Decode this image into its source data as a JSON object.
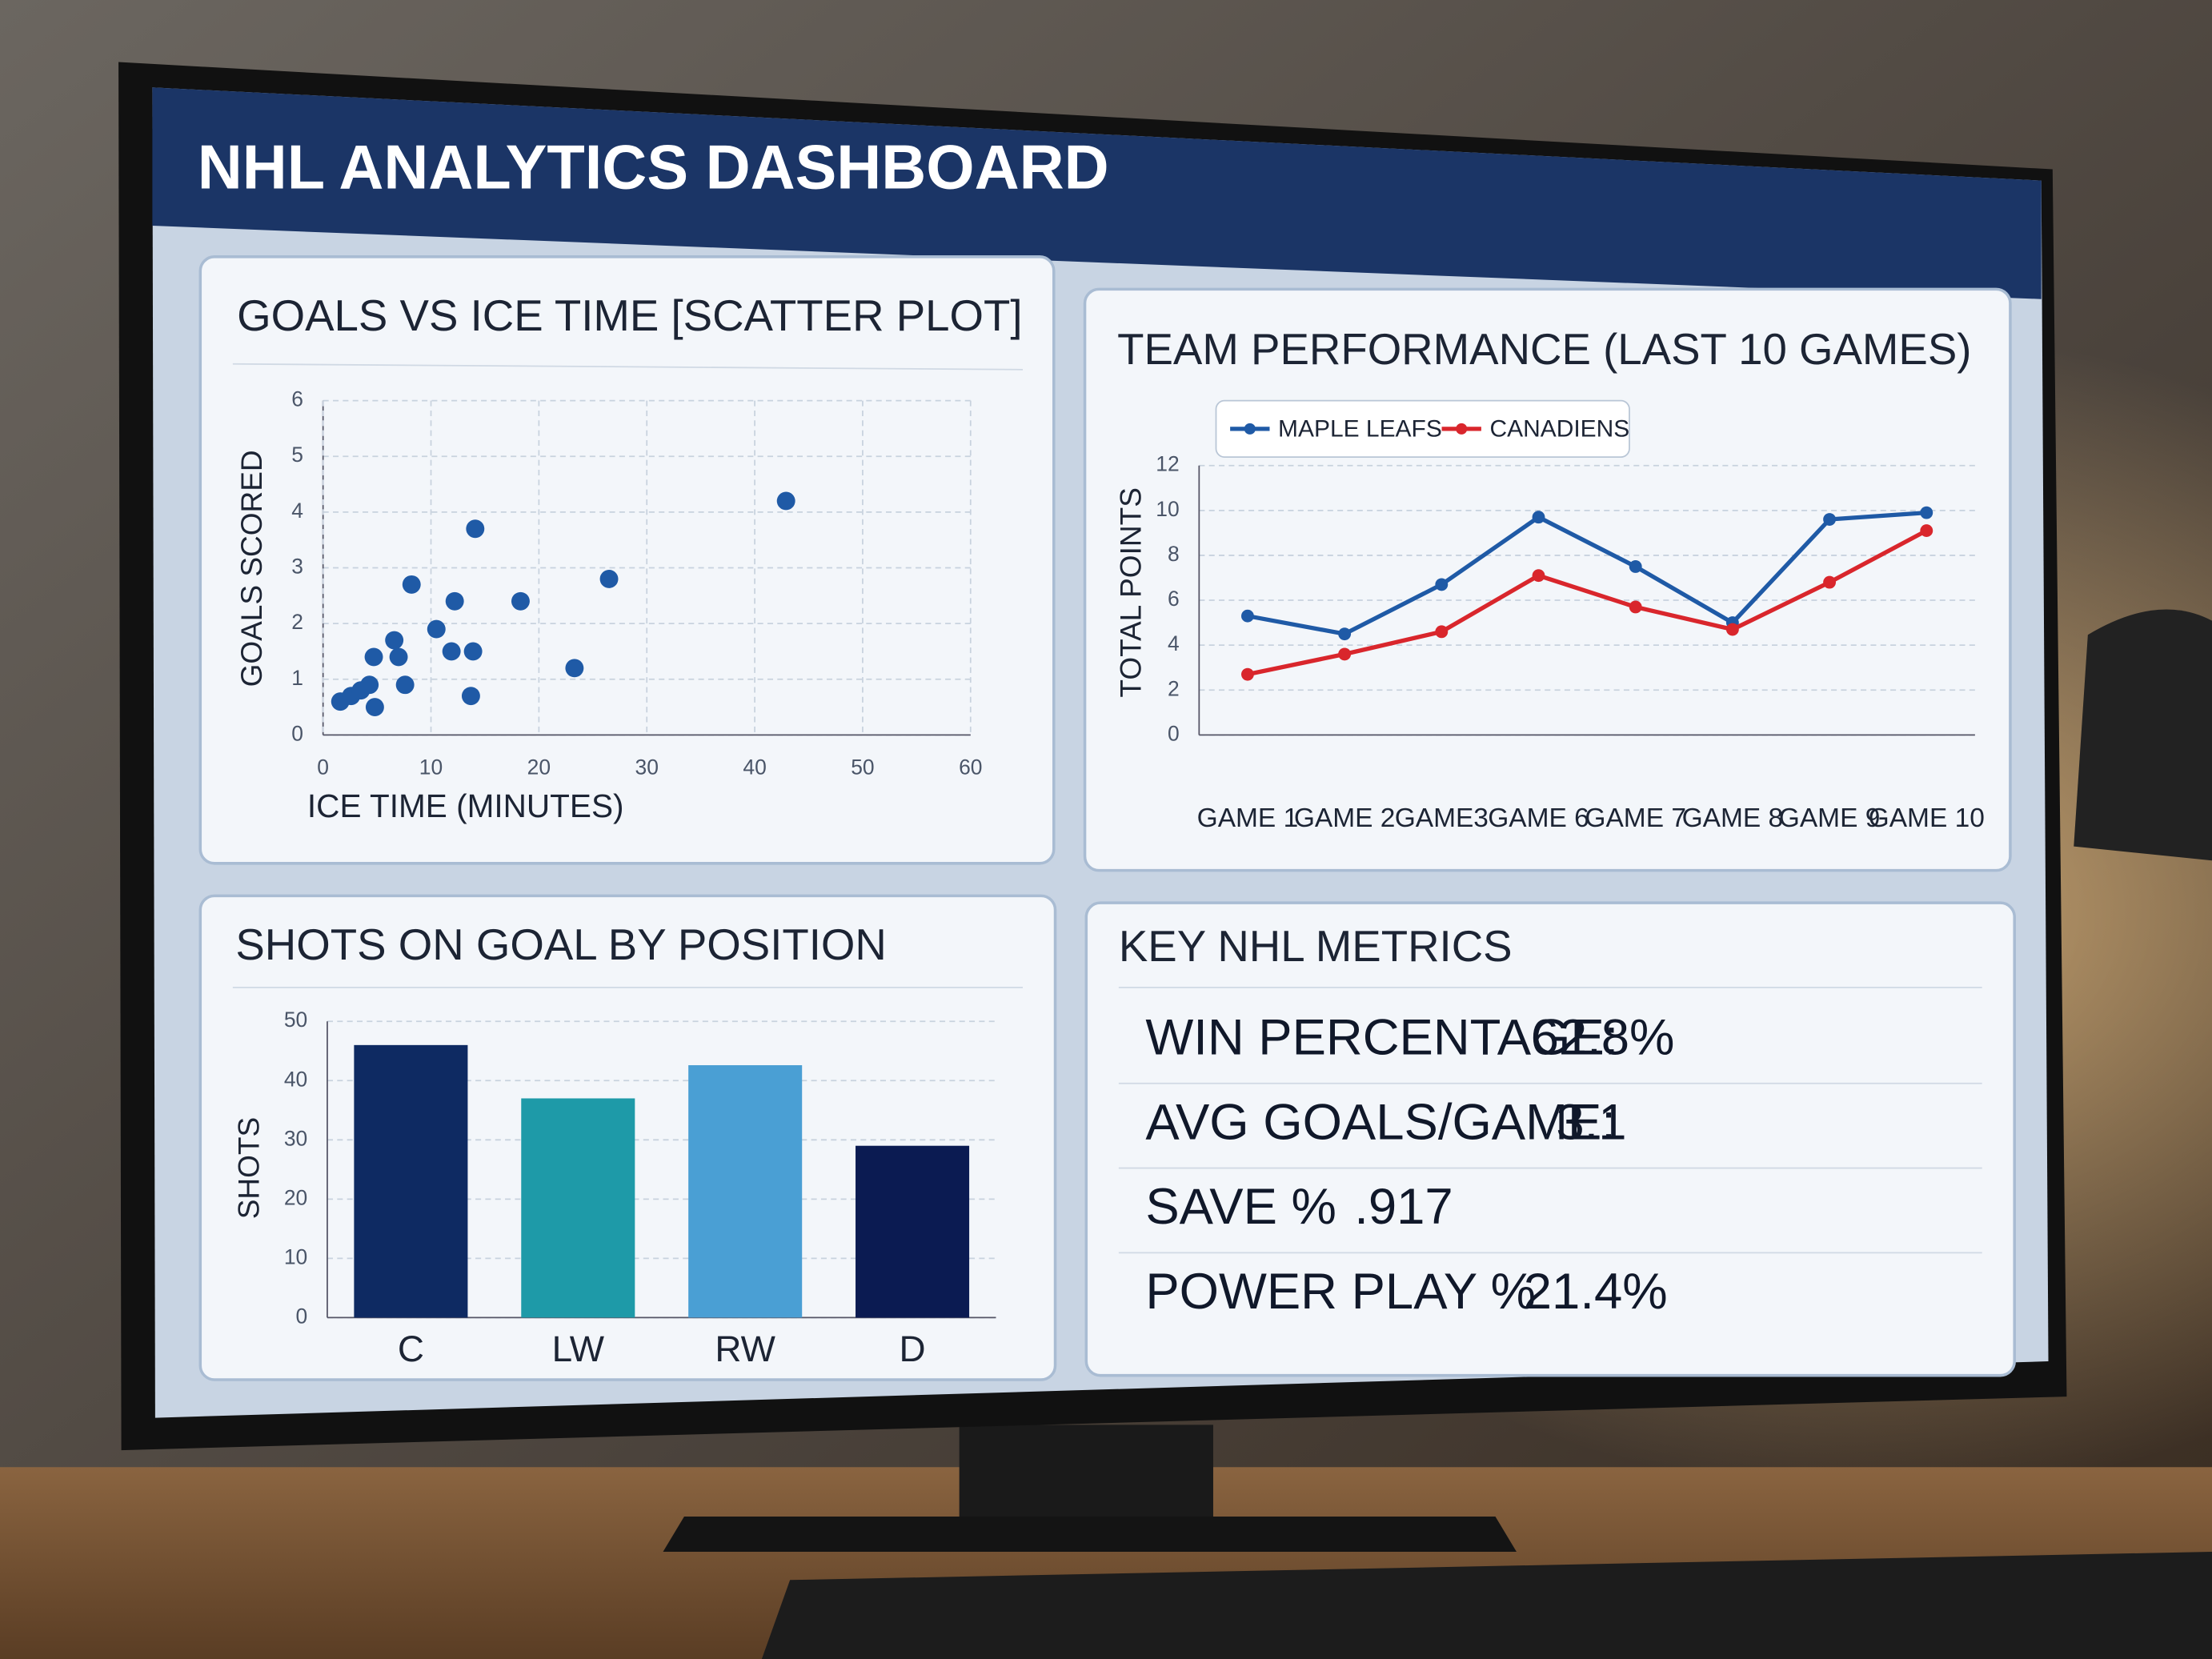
{
  "header": {
    "title": "NHL ANALYTICS DASHBOARD"
  },
  "chart_data": [
    {
      "type": "scatter",
      "title": "GOALS VS ICE TIME [SCATTER PLOT]",
      "x_label": "ICE TIME (MINUTES)",
      "y_label": "GOALS SCORED",
      "x": [
        1.6,
        2.6,
        3.5,
        4.3,
        4.7,
        4.8,
        7.0,
        7.6,
        6.6,
        8.2,
        10.5,
        11.9,
        12.2,
        13.9,
        13.7,
        14.1,
        18.3,
        23.3,
        26.5,
        42.9
      ],
      "y": [
        0.6,
        0.7,
        0.8,
        0.9,
        1.4,
        0.5,
        1.4,
        0.9,
        1.7,
        2.7,
        1.9,
        1.5,
        2.4,
        1.5,
        0.7,
        3.7,
        2.4,
        1.2,
        2.8,
        4.2
      ],
      "color": "#1f5aa6",
      "xlim": [
        0,
        60
      ],
      "xticks": [
        0,
        10,
        20,
        30,
        40,
        50,
        60
      ],
      "ylim": [
        0,
        6
      ],
      "yticks": [
        0,
        1,
        2,
        3,
        4,
        5,
        6
      ],
      "grid": true
    },
    {
      "type": "line",
      "title": "TEAM PERFORMANCE (LAST 10 GAMES)",
      "y_label": "TOTAL POINTS",
      "categories": [
        "GAME 1",
        "GAME 2",
        "GAME3",
        "GAME 6",
        "GAME 7",
        "GAME 8",
        "GAME 9",
        "GAME 10"
      ],
      "series": [
        {
          "name": "MAPLE LEAFS",
          "color": "#1f5aa6",
          "values": [
            5.3,
            4.5,
            6.7,
            9.7,
            7.5,
            5.0,
            9.6,
            9.9
          ]
        },
        {
          "name": "CANADIENS",
          "color": "#d9262c",
          "values": [
            2.7,
            3.6,
            4.6,
            7.1,
            5.7,
            4.7,
            6.8,
            9.1
          ]
        }
      ],
      "ylim": [
        0,
        12
      ],
      "yticks": [
        0,
        2,
        4,
        6,
        8,
        10,
        12
      ],
      "grid": true,
      "legend": "top-left"
    },
    {
      "type": "bar",
      "title": "SHOTS ON GOAL BY POSITION",
      "y_label": "SHOTS",
      "categories": [
        "C",
        "LW",
        "RW",
        "D"
      ],
      "values": [
        46,
        37,
        42.6,
        29
      ],
      "colors": [
        "#0e2a62",
        "#1e9aa8",
        "#4a9fd4",
        "#0b1b52"
      ],
      "ylim": [
        0,
        50
      ],
      "yticks": [
        0,
        10,
        20,
        30,
        40,
        50
      ],
      "grid": true
    }
  ],
  "metrics": {
    "title": "KEY NHL METRICS",
    "items": [
      {
        "label": "WIN PERCENTAGE:",
        "value": "62.8%"
      },
      {
        "label": "AVG GOALS/GAME:",
        "value": "3.1"
      },
      {
        "label": "SAVE %",
        "value": ".917"
      },
      {
        "label": "POWER PLAY %",
        "value": "21.4%"
      }
    ]
  }
}
